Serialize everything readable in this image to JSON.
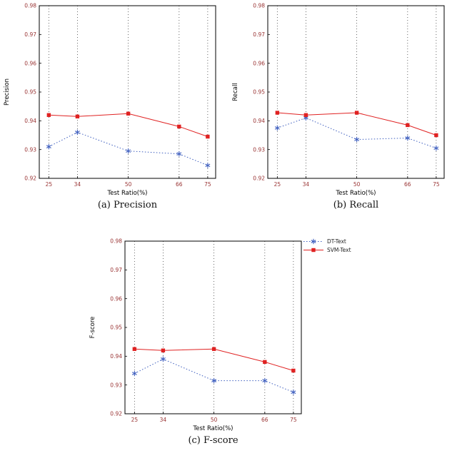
{
  "style": {
    "background": "#ffffff",
    "axis_color": "#000000",
    "tick_label_color": "#993333",
    "grid_color": "#444444"
  },
  "legend": {
    "items": [
      {
        "label": "DT-Text",
        "color": "#3f5fbf",
        "style": "dotted",
        "marker": "asterisk"
      },
      {
        "label": "SVM-Text",
        "color": "#e02222",
        "style": "solid",
        "marker": "square"
      }
    ]
  },
  "chart_data": [
    {
      "type": "line",
      "caption": "(a) Precision",
      "xlabel": "Test Ratio(%)",
      "ylabel": "Precision",
      "x": [
        25,
        34,
        50,
        66,
        75
      ],
      "xticks": [
        25,
        34,
        50,
        66,
        75
      ],
      "xlim": [
        22,
        77.5
      ],
      "ylim": [
        0.92,
        0.98
      ],
      "yticks": [
        0.92,
        0.93,
        0.94,
        0.95,
        0.96,
        0.97,
        0.98
      ],
      "grid": "vertical-dotted",
      "legend_position": "outside-top-right-of-figure",
      "series": [
        {
          "name": "DT-Text",
          "color": "#3f5fbf",
          "style": "dotted",
          "marker": "asterisk",
          "values": [
            0.931,
            0.936,
            0.9295,
            0.9285,
            0.9245
          ]
        },
        {
          "name": "SVM-Text",
          "color": "#e02222",
          "style": "solid",
          "marker": "square",
          "values": [
            0.942,
            0.9415,
            0.9425,
            0.938,
            0.9345
          ]
        }
      ]
    },
    {
      "type": "line",
      "caption": "(b) Recall",
      "xlabel": "Test Ratio(%)",
      "ylabel": "Recall",
      "x": [
        25,
        34,
        50,
        66,
        75
      ],
      "xticks": [
        25,
        34,
        50,
        66,
        75
      ],
      "xlim": [
        22,
        77.5
      ],
      "ylim": [
        0.92,
        0.98
      ],
      "yticks": [
        0.92,
        0.93,
        0.94,
        0.95,
        0.96,
        0.97,
        0.98
      ],
      "grid": "vertical-dotted",
      "series": [
        {
          "name": "DT-Text",
          "color": "#3f5fbf",
          "style": "dotted",
          "marker": "asterisk",
          "values": [
            0.9375,
            0.941,
            0.9335,
            0.934,
            0.9305
          ]
        },
        {
          "name": "SVM-Text",
          "color": "#e02222",
          "style": "solid",
          "marker": "square",
          "values": [
            0.9428,
            0.942,
            0.9428,
            0.9385,
            0.935
          ]
        }
      ]
    },
    {
      "type": "line",
      "caption": "(c) F-score",
      "xlabel": "Test Ratio(%)",
      "ylabel": "F-score",
      "x": [
        25,
        34,
        50,
        66,
        75
      ],
      "xticks": [
        25,
        34,
        50,
        66,
        75
      ],
      "xlim": [
        22,
        77.5
      ],
      "ylim": [
        0.92,
        0.98
      ],
      "yticks": [
        0.92,
        0.93,
        0.94,
        0.95,
        0.96,
        0.97,
        0.98
      ],
      "grid": "vertical-dotted",
      "series": [
        {
          "name": "DT-Text",
          "color": "#3f5fbf",
          "style": "dotted",
          "marker": "asterisk",
          "values": [
            0.934,
            0.939,
            0.9315,
            0.9315,
            0.9275
          ]
        },
        {
          "name": "SVM-Text",
          "color": "#e02222",
          "style": "solid",
          "marker": "square",
          "values": [
            0.9425,
            0.942,
            0.9425,
            0.938,
            0.935
          ]
        }
      ]
    }
  ]
}
